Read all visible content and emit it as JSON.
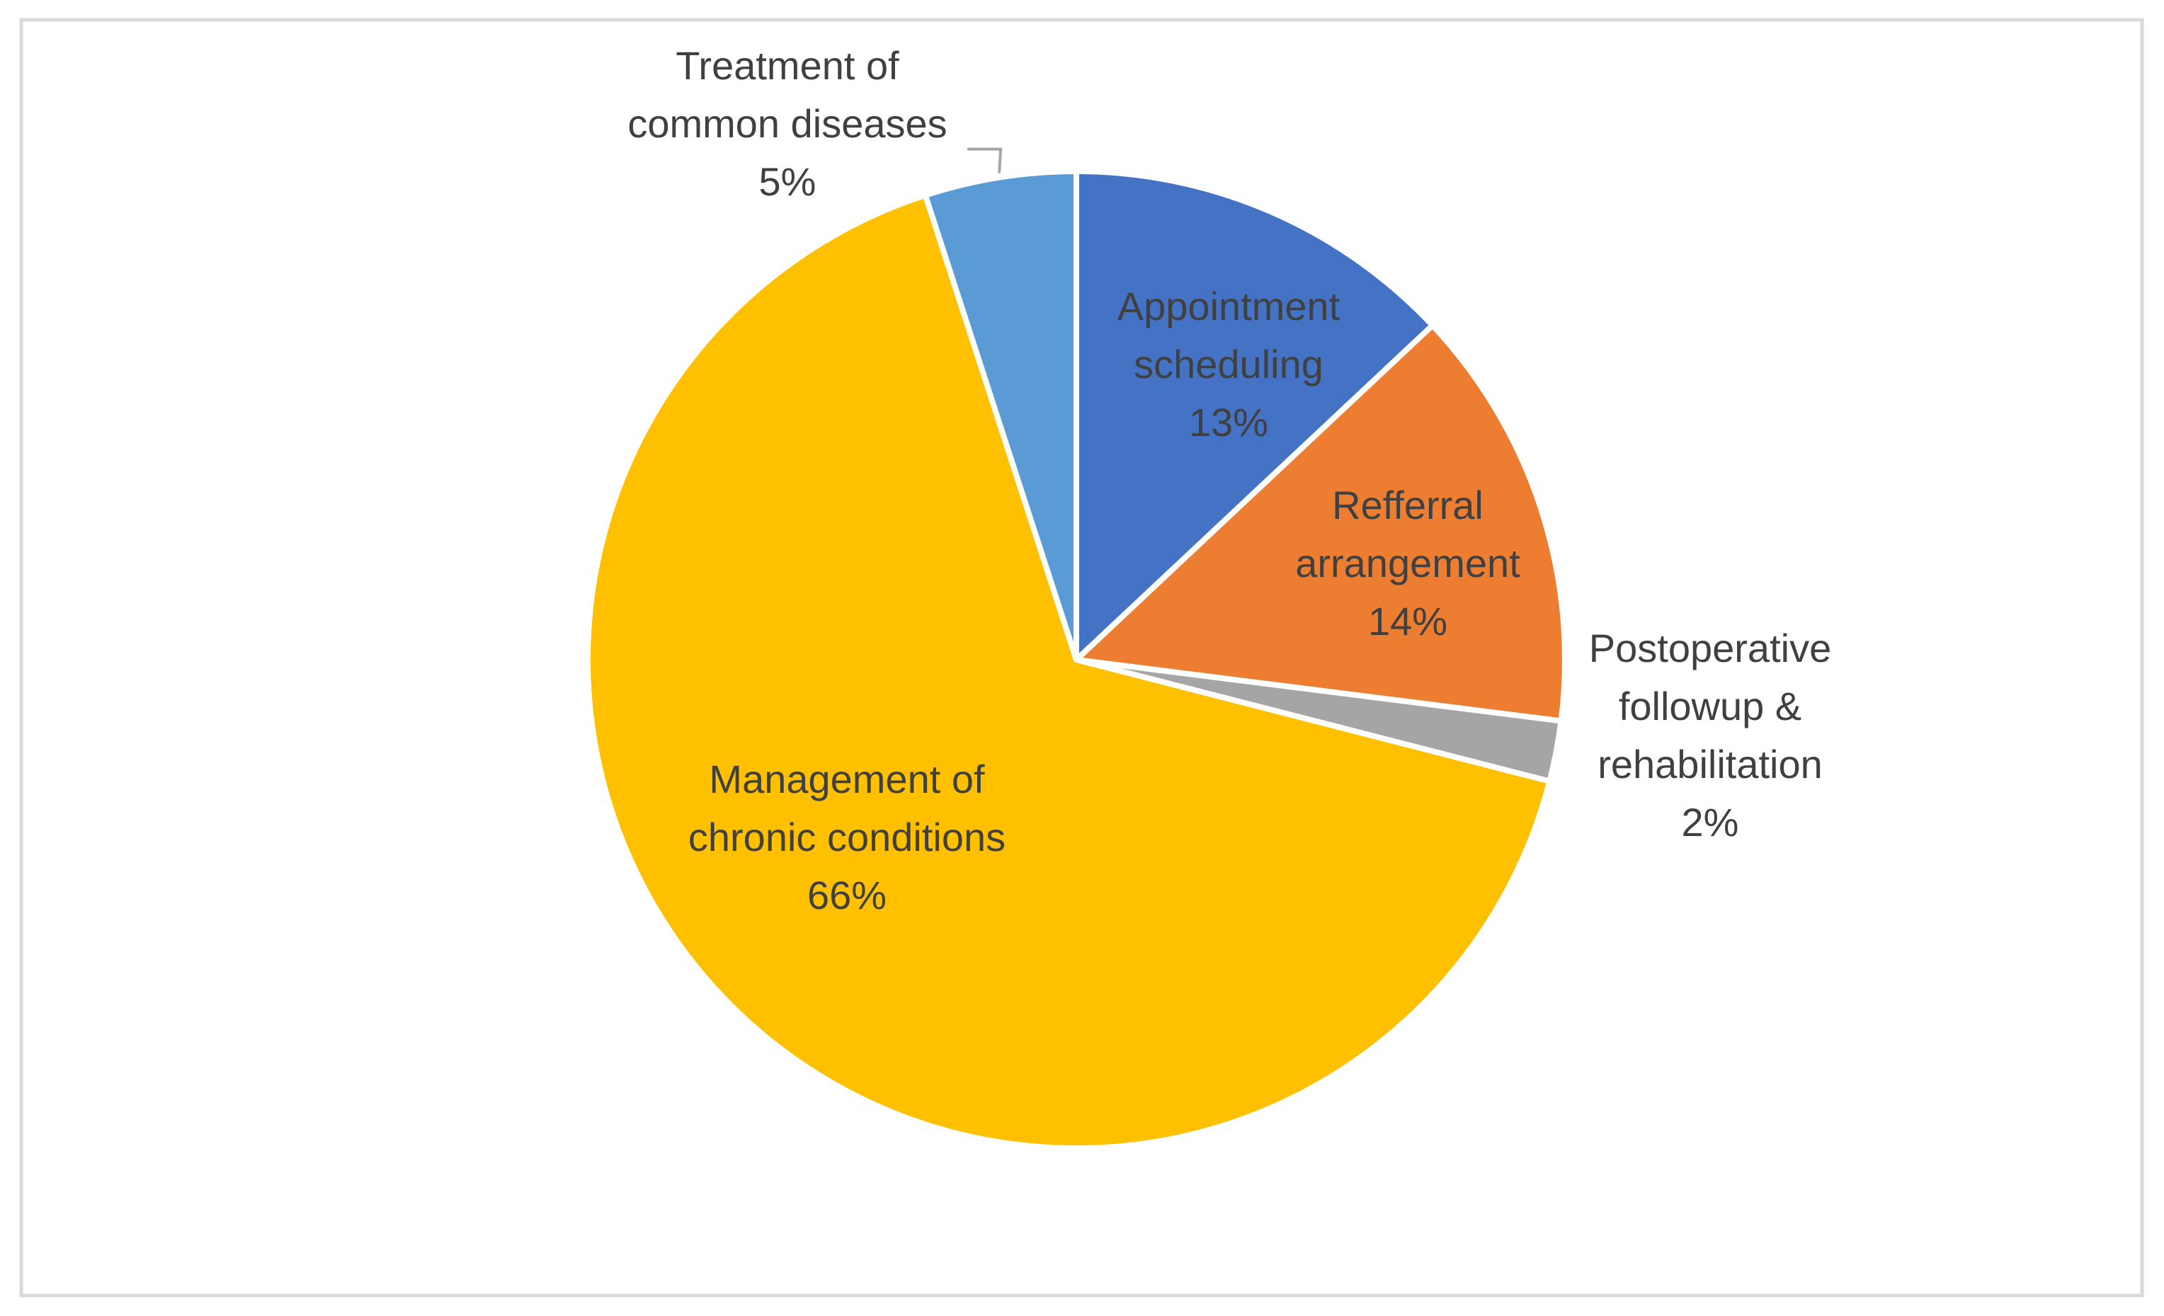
{
  "chart_data": {
    "type": "pie",
    "title": "",
    "start_angle_deg": 0,
    "direction": "clockwise",
    "border_color": "#d9d9d9",
    "slice_stroke_color": "#ffffff",
    "slices": [
      {
        "id": "appointment",
        "name": "Appointment scheduling",
        "value": 13,
        "color": "#4472c4",
        "label_lines": [
          "Appointment",
          "scheduling",
          "13%"
        ],
        "label_position": "inside"
      },
      {
        "id": "referral",
        "name": "Refferral arrangement",
        "value": 14,
        "color": "#ed7d31",
        "label_lines": [
          "Refferral",
          "arrangement",
          "14%"
        ],
        "label_position": "inside"
      },
      {
        "id": "postoperative",
        "name": "Postoperative followup & rehabilitation",
        "value": 2,
        "color": "#a5a5a5",
        "label_lines": [
          "Postoperative",
          "followup &",
          "rehabilitation",
          "2%"
        ],
        "label_position": "outside"
      },
      {
        "id": "chronic",
        "name": "Management of chronic conditions",
        "value": 66,
        "color": "#ffc000",
        "label_lines": [
          "Management of",
          "chronic conditions",
          "66%"
        ],
        "label_position": "inside"
      },
      {
        "id": "common",
        "name": "Treatment of common diseases",
        "value": 5,
        "color": "#5b9bd5",
        "label_lines": [
          "Treatment of",
          "common diseases",
          "5%"
        ],
        "label_position": "outside-leader"
      }
    ]
  }
}
